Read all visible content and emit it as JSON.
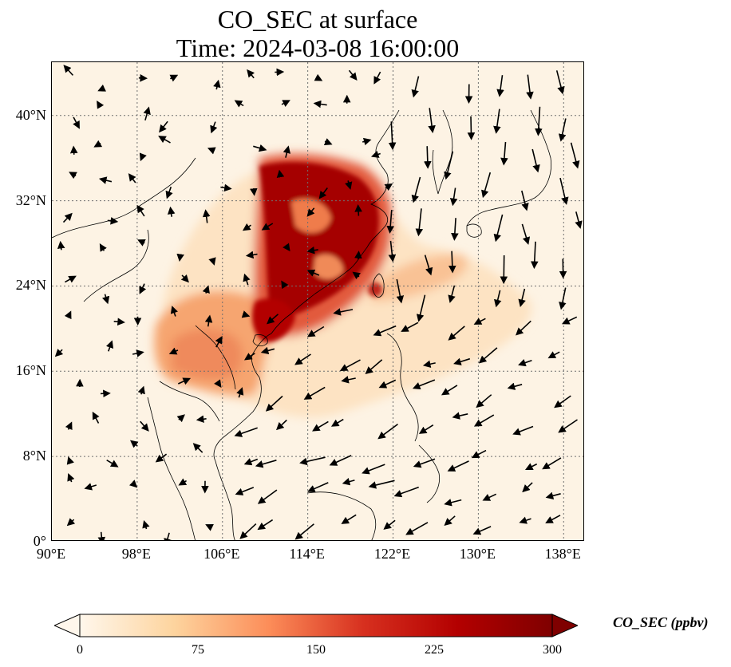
{
  "title": {
    "line1": "CO_SEC at surface",
    "line2": "Time: 2024-03-08 16:00:00"
  },
  "map": {
    "projection": "PlateCarree",
    "lon_range": [
      90,
      140
    ],
    "lat_range": [
      0,
      45
    ],
    "gridlines": "dotted",
    "lat_ticks": [
      {
        "value": 0,
        "label": "0°"
      },
      {
        "value": 8,
        "label": "8°N"
      },
      {
        "value": 16,
        "label": "16°N"
      },
      {
        "value": 24,
        "label": "24°N"
      },
      {
        "value": 32,
        "label": "32°N"
      },
      {
        "value": 40,
        "label": "40°N"
      }
    ],
    "lon_ticks": [
      {
        "value": 90,
        "label": "90°E"
      },
      {
        "value": 98,
        "label": "98°E"
      },
      {
        "value": 106,
        "label": "106°E"
      },
      {
        "value": 114,
        "label": "114°E"
      },
      {
        "value": 122,
        "label": "122°E"
      },
      {
        "value": 130,
        "label": "130°E"
      },
      {
        "value": 138,
        "label": "138°E"
      }
    ]
  },
  "colorbar": {
    "label": "CO_SEC (ppbv)",
    "min": 0,
    "max": 300,
    "extend": "both",
    "colormap": "OrRd",
    "colors": [
      "#fff7ec",
      "#fdd49e",
      "#fc8d59",
      "#d7301f",
      "#b30000",
      "#7f0000"
    ],
    "ticks": [
      {
        "value": 0,
        "label": "0"
      },
      {
        "value": 75,
        "label": "75"
      },
      {
        "value": 150,
        "label": "150"
      },
      {
        "value": 225,
        "label": "225"
      },
      {
        "value": 300,
        "label": "300"
      }
    ]
  }
}
